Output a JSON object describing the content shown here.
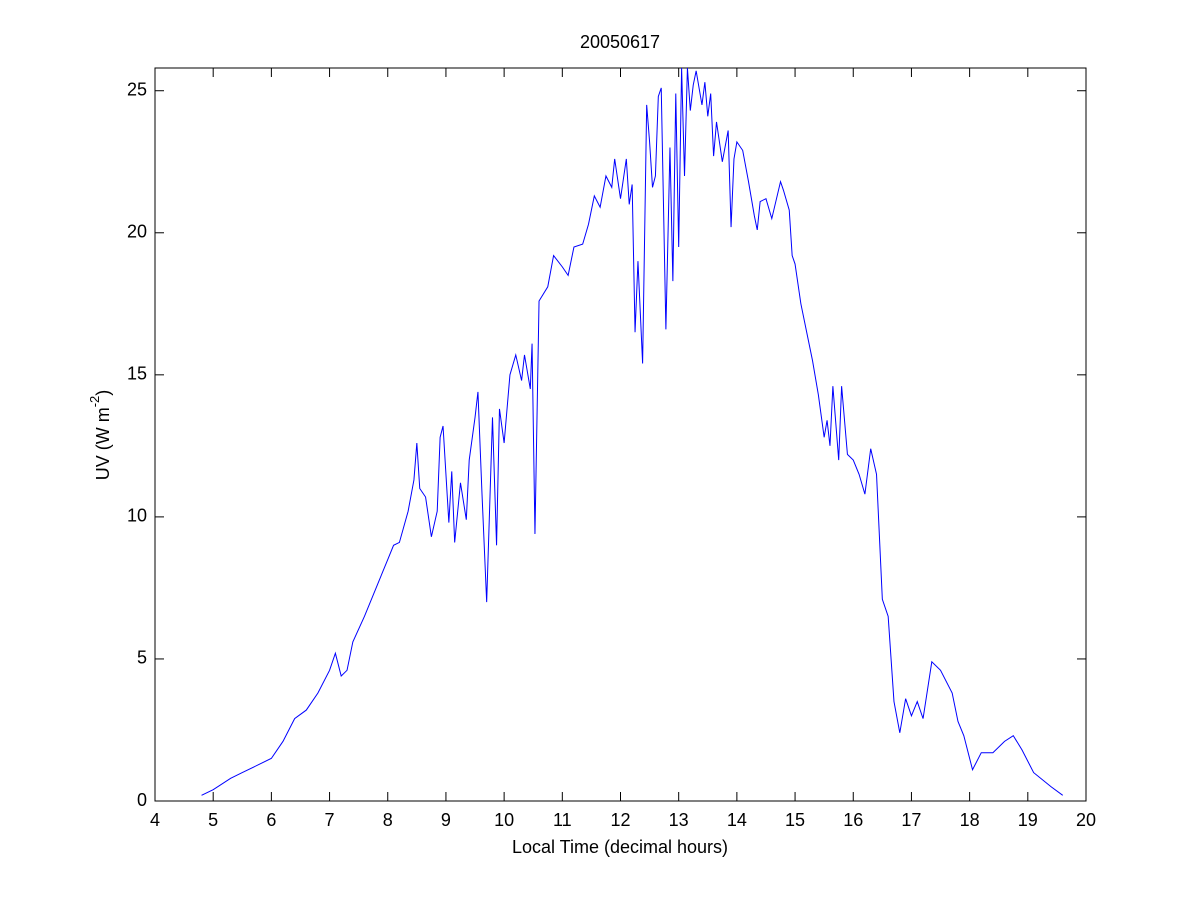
{
  "chart_data": {
    "type": "line",
    "title": "20050617",
    "xlabel": "Local Time (decimal hours)",
    "ylabel": {
      "text": "UV (W m",
      "superscript": "-2",
      "suffix": ")"
    },
    "xlim": [
      4,
      20
    ],
    "xticks": [
      4,
      5,
      6,
      7,
      8,
      9,
      10,
      11,
      12,
      13,
      14,
      15,
      16,
      17,
      18,
      19,
      20
    ],
    "ylim": [
      0,
      25.8
    ],
    "yticks": [
      0,
      5,
      10,
      15,
      20,
      25
    ],
    "grid": false,
    "series": [
      {
        "name": "UV",
        "color": "#0000ff",
        "x": [
          4.8,
          5.0,
          5.3,
          5.5,
          5.8,
          6.0,
          6.2,
          6.4,
          6.6,
          6.8,
          7.0,
          7.1,
          7.2,
          7.3,
          7.4,
          7.6,
          7.8,
          8.0,
          8.1,
          8.2,
          8.35,
          8.45,
          8.5,
          8.55,
          8.65,
          8.75,
          8.85,
          8.9,
          8.95,
          9.05,
          9.1,
          9.15,
          9.25,
          9.35,
          9.4,
          9.5,
          9.55,
          9.62,
          9.7,
          9.8,
          9.87,
          9.92,
          10.0,
          10.1,
          10.2,
          10.3,
          10.35,
          10.45,
          10.48,
          10.53,
          10.6,
          10.75,
          10.85,
          11.0,
          11.1,
          11.2,
          11.35,
          11.45,
          11.55,
          11.65,
          11.75,
          11.85,
          11.9,
          12.0,
          12.1,
          12.15,
          12.2,
          12.25,
          12.3,
          12.38,
          12.45,
          12.5,
          12.55,
          12.6,
          12.65,
          12.7,
          12.78,
          12.85,
          12.9,
          12.95,
          13.0,
          13.05,
          13.1,
          13.15,
          13.2,
          13.25,
          13.3,
          13.4,
          13.45,
          13.5,
          13.55,
          13.6,
          13.65,
          13.75,
          13.85,
          13.9,
          13.95,
          14.0,
          14.1,
          14.2,
          14.3,
          14.35,
          14.4,
          14.5,
          14.6,
          14.75,
          14.8,
          14.9,
          14.95,
          15.0,
          15.1,
          15.2,
          15.3,
          15.4,
          15.5,
          15.55,
          15.6,
          15.65,
          15.75,
          15.8,
          15.9,
          16.0,
          16.1,
          16.2,
          16.3,
          16.4,
          16.5,
          16.6,
          16.7,
          16.8,
          16.9,
          17.0,
          17.1,
          17.2,
          17.35,
          17.5,
          17.7,
          17.8,
          17.9,
          18.05,
          18.2,
          18.4,
          18.6,
          18.75,
          18.9,
          19.1,
          19.4,
          19.6
        ],
        "values": [
          0.2,
          0.4,
          0.8,
          1.0,
          1.3,
          1.5,
          2.1,
          2.9,
          3.2,
          3.8,
          4.6,
          5.2,
          4.4,
          4.6,
          5.6,
          6.5,
          7.5,
          8.5,
          9.0,
          9.1,
          10.2,
          11.3,
          12.6,
          11.0,
          10.7,
          9.3,
          10.2,
          12.8,
          13.2,
          9.8,
          11.6,
          9.1,
          11.2,
          9.9,
          12.0,
          13.5,
          14.4,
          10.8,
          7.0,
          13.5,
          9.0,
          13.8,
          12.6,
          15.0,
          15.7,
          14.8,
          15.7,
          14.5,
          16.1,
          9.4,
          17.6,
          18.1,
          19.2,
          18.8,
          18.5,
          19.5,
          19.6,
          20.3,
          21.3,
          20.9,
          22.0,
          21.6,
          22.6,
          21.2,
          22.6,
          21.0,
          21.7,
          16.5,
          19.0,
          15.4,
          24.5,
          23.2,
          21.6,
          22.0,
          24.8,
          25.1,
          16.6,
          23.0,
          18.3,
          24.9,
          19.5,
          25.8,
          22.0,
          25.8,
          24.3,
          25.2,
          25.7,
          24.5,
          25.3,
          24.1,
          24.9,
          22.7,
          23.9,
          22.5,
          23.6,
          20.2,
          22.6,
          23.2,
          22.9,
          21.8,
          20.6,
          20.1,
          21.1,
          21.2,
          20.5,
          21.8,
          21.5,
          20.8,
          19.2,
          18.9,
          17.5,
          16.5,
          15.5,
          14.3,
          12.8,
          13.4,
          12.5,
          14.6,
          12.0,
          14.6,
          12.2,
          12.0,
          11.5,
          10.8,
          12.4,
          11.5,
          7.1,
          6.5,
          3.5,
          2.4,
          3.6,
          3.0,
          3.5,
          2.9,
          4.9,
          4.6,
          3.8,
          2.8,
          2.3,
          1.1,
          1.7,
          1.7,
          2.1,
          2.3,
          1.8,
          1.0,
          0.5,
          0.2
        ]
      }
    ]
  }
}
